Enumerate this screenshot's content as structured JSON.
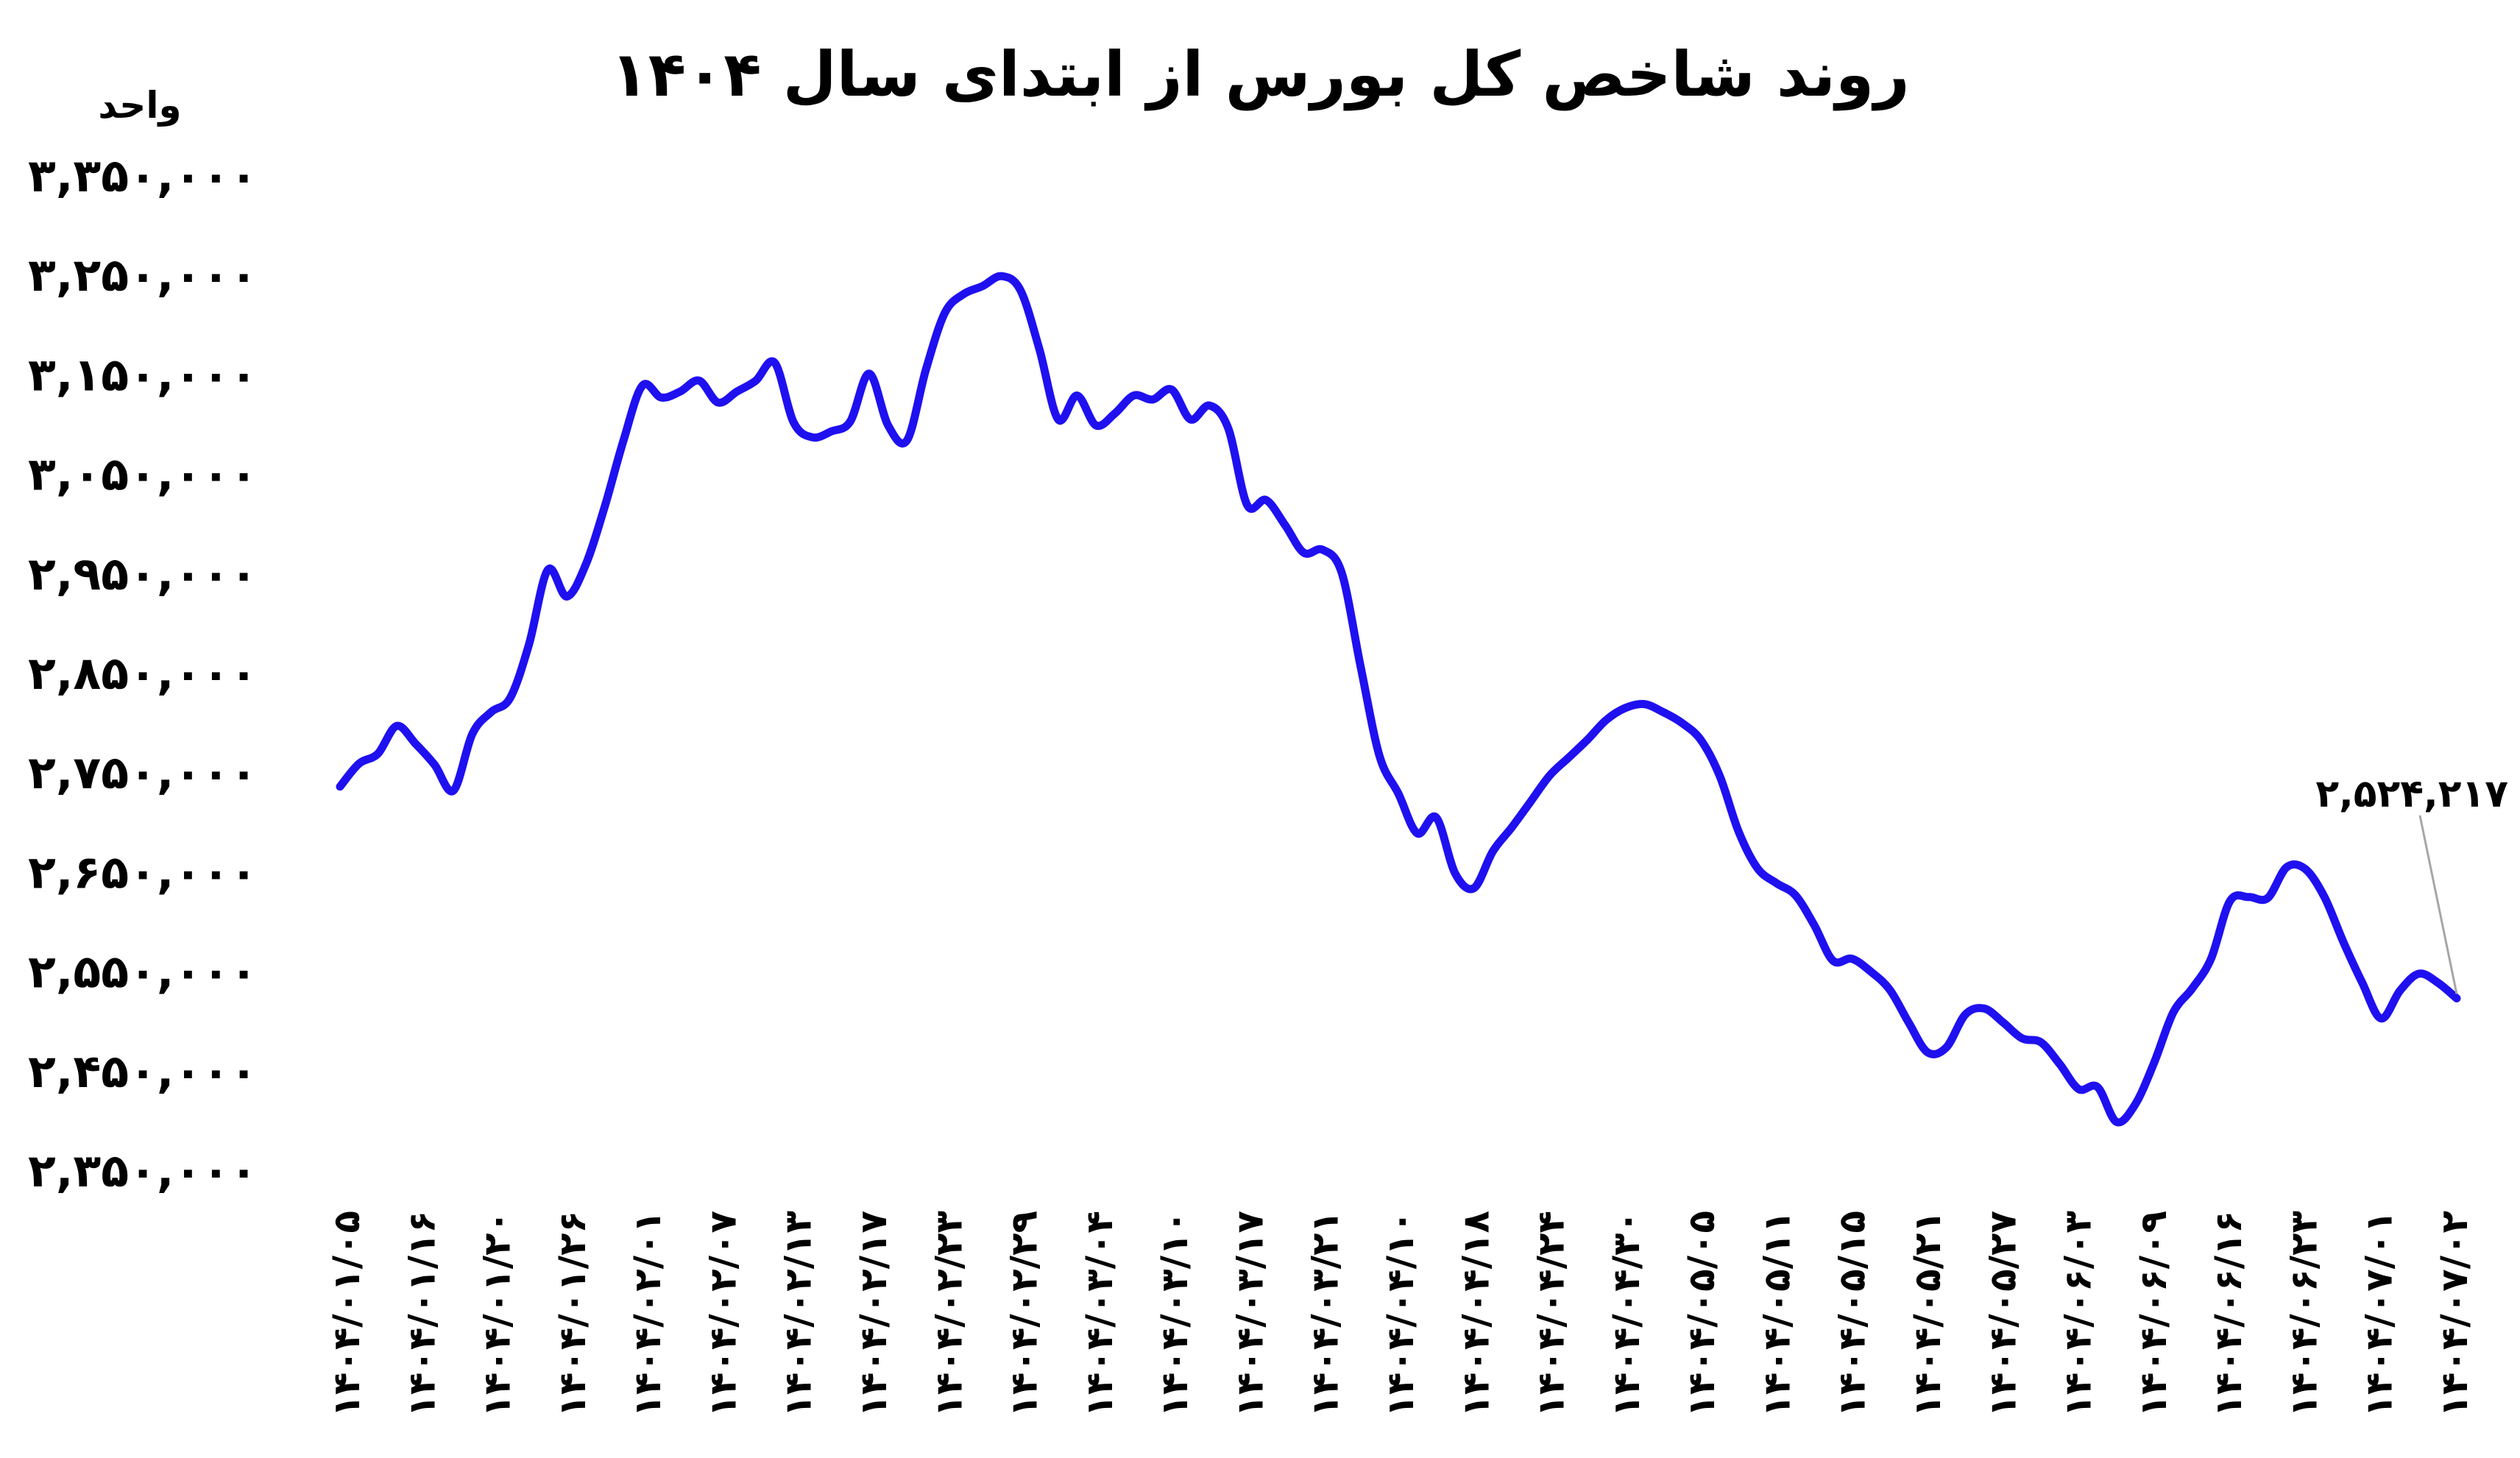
{
  "chart_data": {
    "type": "line",
    "title": "روند شاخص کل بورس از ابتدای سال ۱۴۰۴",
    "ylabel": "واحد",
    "xlabel": "",
    "ylim": [
      2350000,
      3350000
    ],
    "grid": false,
    "legend": "none",
    "line_color": "#1f10f0",
    "yticks": [
      {
        "value": 3350000,
        "label": "۳,۳۵۰,۰۰۰"
      },
      {
        "value": 3250000,
        "label": "۳,۲۵۰,۰۰۰"
      },
      {
        "value": 3150000,
        "label": "۳,۱۵۰,۰۰۰"
      },
      {
        "value": 3050000,
        "label": "۳,۰۵۰,۰۰۰"
      },
      {
        "value": 2950000,
        "label": "۲,۹۵۰,۰۰۰"
      },
      {
        "value": 2850000,
        "label": "۲,۸۵۰,۰۰۰"
      },
      {
        "value": 2750000,
        "label": "۲,۷۵۰,۰۰۰"
      },
      {
        "value": 2650000,
        "label": "۲,۶۵۰,۰۰۰"
      },
      {
        "value": 2550000,
        "label": "۲,۵۵۰,۰۰۰"
      },
      {
        "value": 2450000,
        "label": "۲,۴۵۰,۰۰۰"
      },
      {
        "value": 2350000,
        "label": "۲,۳۵۰,۰۰۰"
      }
    ],
    "x_tick_labels": [
      "۱۴۰۴/۰۱/۰۵",
      "۱۴۰۴/۰۱/۱۶",
      "۱۴۰۴/۰۱/۲۰",
      "۱۴۰۴/۰۱/۲۶",
      "۱۴۰۴/۰۲/۰۱",
      "۱۴۰۴/۰۲/۰۷",
      "۱۴۰۴/۰۲/۱۳",
      "۱۴۰۴/۰۲/۱۷",
      "۱۴۰۴/۰۲/۲۳",
      "۱۴۰۴/۰۲/۲۹",
      "۱۴۰۴/۰۳/۰۴",
      "۱۴۰۴/۰۳/۱۰",
      "۱۴۰۴/۰۳/۱۷",
      "۱۴۰۴/۰۳/۲۱",
      "۱۴۰۴/۰۴/۱۰",
      "۱۴۰۴/۰۴/۱۸",
      "۱۴۰۴/۰۴/۲۴",
      "۱۴۰۴/۰۴/۳۰",
      "۱۴۰۴/۰۵/۰۵",
      "۱۴۰۴/۰۵/۱۱",
      "۱۴۰۴/۰۵/۱۵",
      "۱۴۰۴/۰۵/۲۱",
      "۱۴۰۴/۰۵/۲۷",
      "۱۴۰۴/۰۶/۰۳",
      "۱۴۰۴/۰۶/۰۹",
      "۱۴۰۴/۰۶/۱۶",
      "۱۴۰۴/۰۶/۲۳",
      "۱۴۰۴/۰۷/۰۱",
      "۱۴۰۴/۰۷/۰۲"
    ],
    "series": [
      {
        "values": [
          2737000,
          2760000,
          2770000,
          2798000,
          2780000,
          2759000,
          2733000,
          2790000,
          2812000,
          2826000,
          2880000,
          2955000,
          2928000,
          2960000,
          3018000,
          3085000,
          3140000,
          3128000,
          3134000,
          3145000,
          3123000,
          3134000,
          3145000,
          3163000,
          3103000,
          3088000,
          3094000,
          3104000,
          3152000,
          3100000,
          3085000,
          3156000,
          3213000,
          3232000,
          3240000,
          3250000,
          3236000,
          3177000,
          3106000,
          3130000,
          3100000,
          3112000,
          3130000,
          3126000,
          3136000,
          3106000,
          3120000,
          3097000,
          3020000,
          3025000,
          3000000,
          2972000,
          2975000,
          2952000,
          2858000,
          2768000,
          2730000,
          2690000,
          2706000,
          2650000,
          2635000,
          2672000,
          2696000,
          2722000,
          2748000,
          2766000,
          2784000,
          2804000,
          2816000,
          2820000,
          2812000,
          2801000,
          2784000,
          2748000,
          2692000,
          2655000,
          2640000,
          2628000,
          2598000,
          2562000,
          2564000,
          2551000,
          2533000,
          2500000,
          2470000,
          2475000,
          2508000,
          2514000,
          2500000,
          2484000,
          2480000,
          2458000,
          2433000,
          2435000,
          2400000,
          2418000,
          2460000,
          2510000,
          2534000,
          2564000,
          2622000,
          2626000,
          2625000,
          2656000,
          2654000,
          2626000,
          2581000,
          2540000,
          2504000,
          2532000,
          2549000,
          2540000,
          2524217
        ]
      }
    ],
    "annotation": {
      "text": "۲,۵۲۴,۲۱۷"
    }
  }
}
